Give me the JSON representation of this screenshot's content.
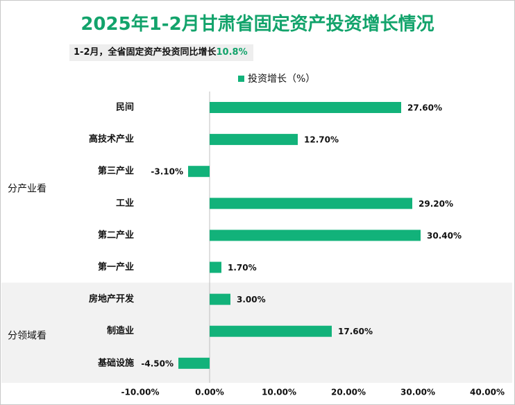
{
  "title": "2025年1-2月甘肃省固定资产投资增长情况",
  "summary": {
    "prefix": "1-2月，全省固定资产投资同比增长",
    "value": "10.8%"
  },
  "chart_data": {
    "type": "bar",
    "orientation": "horizontal",
    "legend": "投资增长（%）",
    "categories": [
      "民间",
      "高技术产业",
      "第三产业",
      "工业",
      "第二产业",
      "第一产业",
      "房地产开发",
      "制造业",
      "基础设施"
    ],
    "values": [
      27.6,
      12.7,
      -3.1,
      29.2,
      30.4,
      1.7,
      3.0,
      17.6,
      -4.5
    ],
    "value_labels": [
      "27.60%",
      "12.70%",
      "-3.10%",
      "29.20%",
      "30.40%",
      "1.70%",
      "3.00%",
      "17.60%",
      "-4.50%"
    ],
    "groups": [
      {
        "label": "分产业看",
        "categories": [
          "民间",
          "高技术产业",
          "第三产业",
          "工业",
          "第二产业",
          "第一产业"
        ]
      },
      {
        "label": "分领域看",
        "categories": [
          "房地产开发",
          "制造业",
          "基础设施"
        ]
      }
    ],
    "xlim": [
      -10,
      40
    ],
    "x_ticks": [
      -10,
      0,
      10,
      20,
      30,
      40
    ],
    "x_tick_labels": [
      "-10.00%",
      "0.00%",
      "10.00%",
      "20.00%",
      "30.00%",
      "40.00%"
    ],
    "bar_color": "#12b27a",
    "group_band_color": "#f2f2f2"
  }
}
